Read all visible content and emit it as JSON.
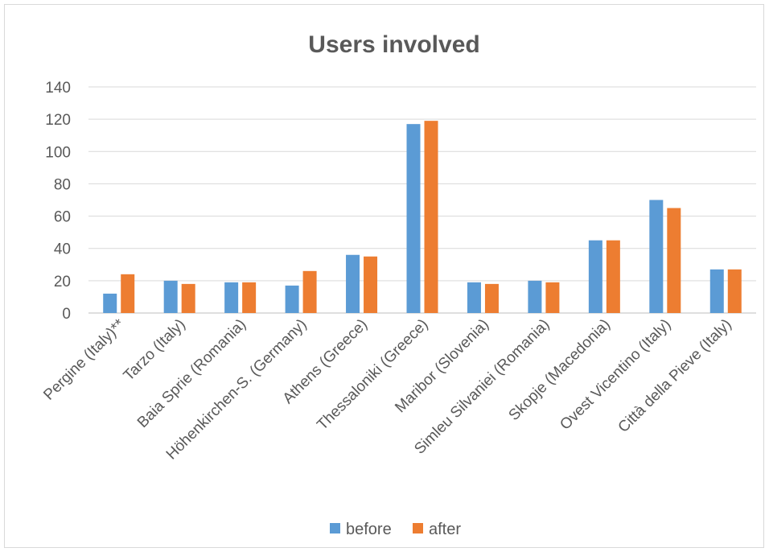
{
  "chart_data": {
    "type": "bar",
    "title": "Users involved",
    "xlabel": "",
    "ylabel": "",
    "ylim": [
      0,
      140
    ],
    "yticks": [
      0,
      20,
      40,
      60,
      80,
      100,
      120,
      140
    ],
    "grid": true,
    "legend_position": "bottom",
    "categories": [
      "Pergine (Italy)**",
      "Tarzo (Italy)",
      "Baia Sprie (Romania)",
      "Höhenkirchen-S. (Germany)",
      "Athens (Greece)",
      "Thessaloniki (Greece)",
      "Maribor (Slovenia)",
      "Simleu Silvaniei (Romania)",
      "Skopje (Macedonia)",
      "Ovest Vicentino (Italy)",
      "Città della Pieve (Italy)"
    ],
    "series": [
      {
        "name": "before",
        "color": "#5b9bd5",
        "values": [
          12,
          20,
          19,
          17,
          36,
          117,
          19,
          20,
          45,
          70,
          27
        ]
      },
      {
        "name": "after",
        "color": "#ed7d31",
        "values": [
          24,
          18,
          19,
          26,
          35,
          119,
          18,
          19,
          45,
          65,
          27
        ]
      }
    ]
  }
}
